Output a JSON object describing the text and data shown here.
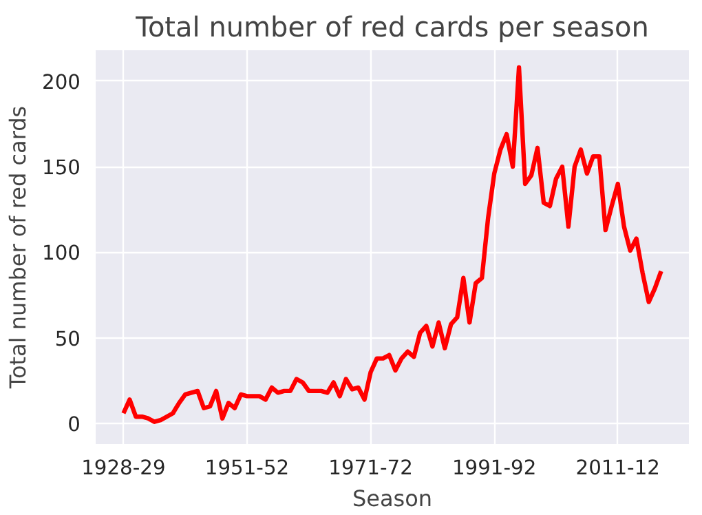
{
  "chart_data": {
    "type": "line",
    "title": "Total number of red cards per season",
    "xlabel": "Season",
    "ylabel": "Total number of red cards",
    "categories": [
      "1928-29",
      null,
      null,
      null,
      null,
      null,
      null,
      null,
      null,
      null,
      null,
      null,
      null,
      null,
      null,
      null,
      null,
      null,
      null,
      null,
      "1951-52",
      null,
      null,
      null,
      null,
      null,
      null,
      null,
      null,
      null,
      null,
      null,
      null,
      null,
      null,
      null,
      null,
      null,
      null,
      null,
      "1971-72",
      null,
      null,
      null,
      null,
      null,
      null,
      null,
      null,
      null,
      null,
      null,
      null,
      null,
      null,
      null,
      null,
      null,
      null,
      null,
      "1991-92",
      null,
      null,
      null,
      null,
      null,
      null,
      null,
      null,
      null,
      null,
      null,
      null,
      null,
      null,
      null,
      null,
      null,
      null,
      null,
      "2011-12",
      null,
      null,
      null,
      null,
      null,
      null,
      null
    ],
    "series": [
      {
        "color": "#ff0000",
        "values": [
          6,
          14,
          4,
          4,
          3,
          1,
          2,
          4,
          6,
          12,
          17,
          18,
          19,
          9,
          10,
          19,
          3,
          12,
          9,
          17,
          16,
          16,
          16,
          14,
          21,
          18,
          19,
          19,
          26,
          24,
          19,
          19,
          19,
          18,
          24,
          16,
          26,
          20,
          21,
          14,
          30,
          38,
          38,
          40,
          31,
          38,
          42,
          39,
          53,
          57,
          45,
          59,
          44,
          58,
          62,
          85,
          59,
          82,
          85,
          120,
          146,
          160,
          169,
          150,
          208,
          140,
          145,
          161,
          129,
          127,
          143,
          150,
          115,
          150,
          160,
          146,
          156,
          156,
          113,
          127,
          140,
          115,
          101,
          108,
          88,
          71,
          79,
          89
        ]
      }
    ],
    "ylim": [
      -12,
      218
    ],
    "yticks": [
      0,
      50,
      100,
      150,
      200
    ],
    "grid": true,
    "marker": "none",
    "line_style": "solid"
  }
}
